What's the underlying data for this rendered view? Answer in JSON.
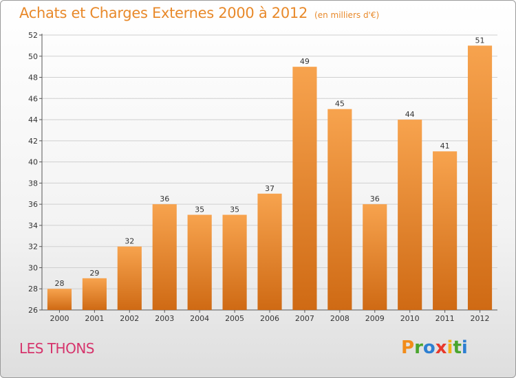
{
  "title": "Achats et Charges Externes 2000 à 2012",
  "unit": "(en milliers d'€)",
  "place": "LES THONS",
  "logo": {
    "letters": [
      "P",
      "r",
      "o",
      "x",
      "i",
      "t",
      "i"
    ],
    "colors": [
      "#f28c1a",
      "#4aa52e",
      "#2d7fd1",
      "#e8392b",
      "#f2b21a",
      "#4aa52e",
      "#2d7fd1"
    ]
  },
  "colors": {
    "bar_light": "#f7a34e",
    "bar_dark": "#cf6a14",
    "title": "#e8892a",
    "place": "#d6346c",
    "grid": "#cfcfcf"
  },
  "chart_data": {
    "type": "bar",
    "categories": [
      "2000",
      "2001",
      "2002",
      "2003",
      "2004",
      "2005",
      "2006",
      "2007",
      "2008",
      "2009",
      "2010",
      "2011",
      "2012"
    ],
    "values": [
      28,
      29,
      32,
      36,
      35,
      35,
      37,
      49,
      45,
      36,
      44,
      41,
      51
    ],
    "ylim": [
      26,
      52
    ],
    "yticks": [
      26,
      28,
      30,
      32,
      34,
      36,
      38,
      40,
      42,
      44,
      46,
      48,
      50,
      52
    ],
    "grid": true,
    "xlabel": "",
    "ylabel": ""
  }
}
